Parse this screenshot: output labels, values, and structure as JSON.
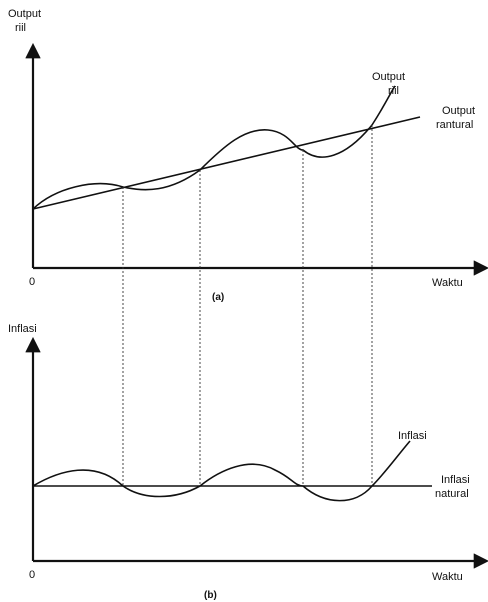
{
  "panel_a": {
    "y_axis_label_line1": "Output",
    "y_axis_label_line2": "riil",
    "origin": "0",
    "x_axis_label": "Waktu",
    "curve_label_line1": "Output",
    "curve_label_line2": "riil",
    "trend_label_line1": "Output",
    "trend_label_line2": "rantural",
    "caption": "(a)"
  },
  "panel_b": {
    "y_axis_label": "Inflasi",
    "origin": "0",
    "x_axis_label": "Waktu",
    "curve_label": "Inflasi",
    "trend_label_line1": "Inflasi",
    "trend_label_line2": "natural",
    "caption": "(b)"
  },
  "colors": {
    "ink": "#111111",
    "guide": "#333333",
    "background": "#ffffff"
  }
}
